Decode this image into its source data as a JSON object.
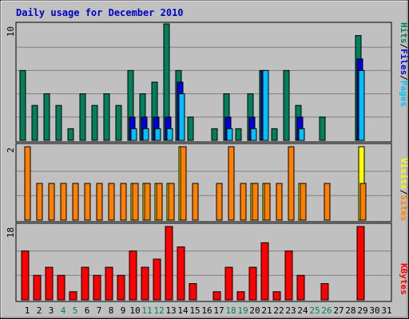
{
  "title": "Daily usage for December 2010",
  "colors": {
    "background": "#C0C0C0",
    "title": "#0000C0",
    "hits": "#00805C",
    "files": "#0000D8",
    "pages": "#00C0FF",
    "visits": "#FFFF00",
    "sites": "#FF8000",
    "kbytes": "#FF0000",
    "weekend_day_label": "#00805C",
    "day_label": "#000000"
  },
  "legend": {
    "top": {
      "hits": "Hits",
      "files": "Files",
      "pages": "Pages",
      "sep1": "/",
      "sep2": "/"
    },
    "middle": {
      "visits": "Visits",
      "sites": "Sites",
      "sep": "/"
    },
    "bottom": {
      "kbytes": "KBytes"
    }
  },
  "chart_data": [
    {
      "type": "bar",
      "panel": "hits-files-pages",
      "y_max_label": "10",
      "ylim": [
        0,
        10
      ],
      "categories": [
        "1",
        "2",
        "3",
        "4",
        "5",
        "6",
        "7",
        "8",
        "9",
        "10",
        "11",
        "12",
        "13",
        "14",
        "15",
        "16",
        "17",
        "18",
        "19",
        "20",
        "21",
        "22",
        "23",
        "24",
        "25",
        "26",
        "27",
        "28",
        "29",
        "30",
        "31"
      ],
      "series": [
        {
          "name": "Hits",
          "values": [
            6,
            3,
            4,
            3,
            1,
            4,
            3,
            4,
            3,
            6,
            4,
            5,
            10,
            6,
            2,
            0,
            1,
            4,
            1,
            4,
            6,
            1,
            6,
            3,
            0,
            2,
            0,
            0,
            9,
            0,
            0
          ]
        },
        {
          "name": "Files",
          "values": [
            0,
            0,
            0,
            0,
            0,
            0,
            0,
            0,
            0,
            2,
            2,
            2,
            2,
            5,
            0,
            0,
            0,
            2,
            0,
            2,
            6,
            0,
            0,
            2,
            0,
            0,
            0,
            0,
            7,
            0,
            0
          ]
        },
        {
          "name": "Pages",
          "values": [
            0,
            0,
            0,
            0,
            0,
            0,
            0,
            0,
            0,
            1,
            1,
            1,
            1,
            4,
            0,
            0,
            0,
            1,
            0,
            1,
            6,
            0,
            0,
            1,
            0,
            0,
            0,
            0,
            6,
            0,
            0
          ]
        }
      ]
    },
    {
      "type": "bar",
      "panel": "visits-sites",
      "y_max_label": "2",
      "ylim": [
        0,
        2
      ],
      "categories": [
        "1",
        "2",
        "3",
        "4",
        "5",
        "6",
        "7",
        "8",
        "9",
        "10",
        "11",
        "12",
        "13",
        "14",
        "15",
        "16",
        "17",
        "18",
        "19",
        "20",
        "21",
        "22",
        "23",
        "24",
        "25",
        "26",
        "27",
        "28",
        "29",
        "30",
        "31"
      ],
      "series": [
        {
          "name": "Visits",
          "values": [
            0,
            0,
            0,
            0,
            0,
            0,
            0,
            0,
            0,
            1,
            1,
            1,
            1,
            2,
            0,
            0,
            0,
            0,
            0,
            1,
            1,
            0,
            0,
            1,
            0,
            0,
            0,
            0,
            2,
            0,
            0
          ]
        },
        {
          "name": "Sites",
          "values": [
            2,
            1,
            1,
            1,
            1,
            1,
            1,
            1,
            1,
            1,
            1,
            1,
            1,
            2,
            1,
            0,
            1,
            2,
            1,
            1,
            1,
            1,
            2,
            1,
            0,
            1,
            0,
            0,
            1,
            0,
            0
          ]
        }
      ]
    },
    {
      "type": "bar",
      "panel": "kbytes",
      "y_max_label": "18",
      "ylim": [
        0,
        18
      ],
      "categories": [
        "1",
        "2",
        "3",
        "4",
        "5",
        "6",
        "7",
        "8",
        "9",
        "10",
        "11",
        "12",
        "13",
        "14",
        "15",
        "16",
        "17",
        "18",
        "19",
        "20",
        "21",
        "22",
        "23",
        "24",
        "25",
        "26",
        "27",
        "28",
        "29",
        "30",
        "31"
      ],
      "series": [
        {
          "name": "KBytes",
          "values": [
            12,
            6,
            8,
            6,
            2,
            8,
            6,
            8,
            6,
            12,
            8,
            10,
            18,
            13,
            4,
            0,
            2,
            8,
            2,
            8,
            14,
            2,
            12,
            6,
            0,
            4,
            0,
            0,
            18,
            0,
            0
          ]
        }
      ]
    }
  ],
  "x_axis": {
    "days": [
      "1",
      "2",
      "3",
      "4",
      "5",
      "6",
      "7",
      "8",
      "9",
      "10",
      "11",
      "12",
      "13",
      "14",
      "15",
      "16",
      "17",
      "18",
      "19",
      "20",
      "21",
      "22",
      "23",
      "24",
      "25",
      "26",
      "27",
      "28",
      "29",
      "30",
      "31"
    ],
    "weekend_days": [
      "4",
      "5",
      "11",
      "12",
      "18",
      "19",
      "25",
      "26"
    ]
  }
}
